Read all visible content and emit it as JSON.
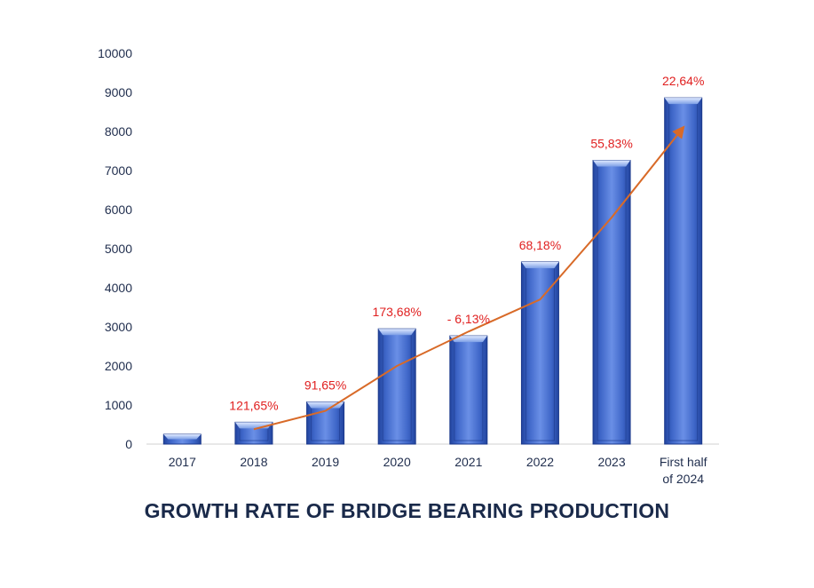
{
  "chart_data": {
    "type": "bar",
    "title": "GROWTH RATE OF BRIDGE BEARING PRODUCTION",
    "xlabel": "",
    "ylabel": "",
    "ylim": [
      0,
      10000
    ],
    "yticks": [
      "0",
      "1000",
      "2000",
      "3000",
      "4000",
      "5000",
      "6000",
      "7000",
      "8000",
      "9000",
      "10000"
    ],
    "categories": [
      "2017",
      "2018",
      "2019",
      "2020",
      "2021",
      "2022",
      "2023",
      "First half of 2024"
    ],
    "category_lines": [
      [
        "2017"
      ],
      [
        "2018"
      ],
      [
        "2019"
      ],
      [
        "2020"
      ],
      [
        "2021"
      ],
      [
        "2022"
      ],
      [
        "2023"
      ],
      [
        "First half",
        "of 2024"
      ]
    ],
    "values": [
      250,
      560,
      1080,
      2950,
      2770,
      4660,
      7260,
      8860
    ],
    "growth_labels": [
      "",
      "121,65%",
      "91,65%",
      "173,68%",
      "- 6,13%",
      "68,18%",
      "55,83%",
      "22,64%"
    ],
    "trend_line": {
      "x_categories": [
        "2018",
        "2019",
        "2020",
        "2021",
        "2022",
        "2023",
        "First half of 2024"
      ],
      "values": [
        380,
        850,
        2000,
        2880,
        3700,
        5800,
        8100
      ]
    },
    "grid": false,
    "legend": "none",
    "colors": {
      "bar": "#4a72d6",
      "bar_dark": "#2448a8",
      "bar_light": "#8fb0f0",
      "trend": "#d86a28",
      "growth_label": "#e02020",
      "axis_text": "#1f2d4d",
      "title": "#1a2a4a"
    }
  }
}
